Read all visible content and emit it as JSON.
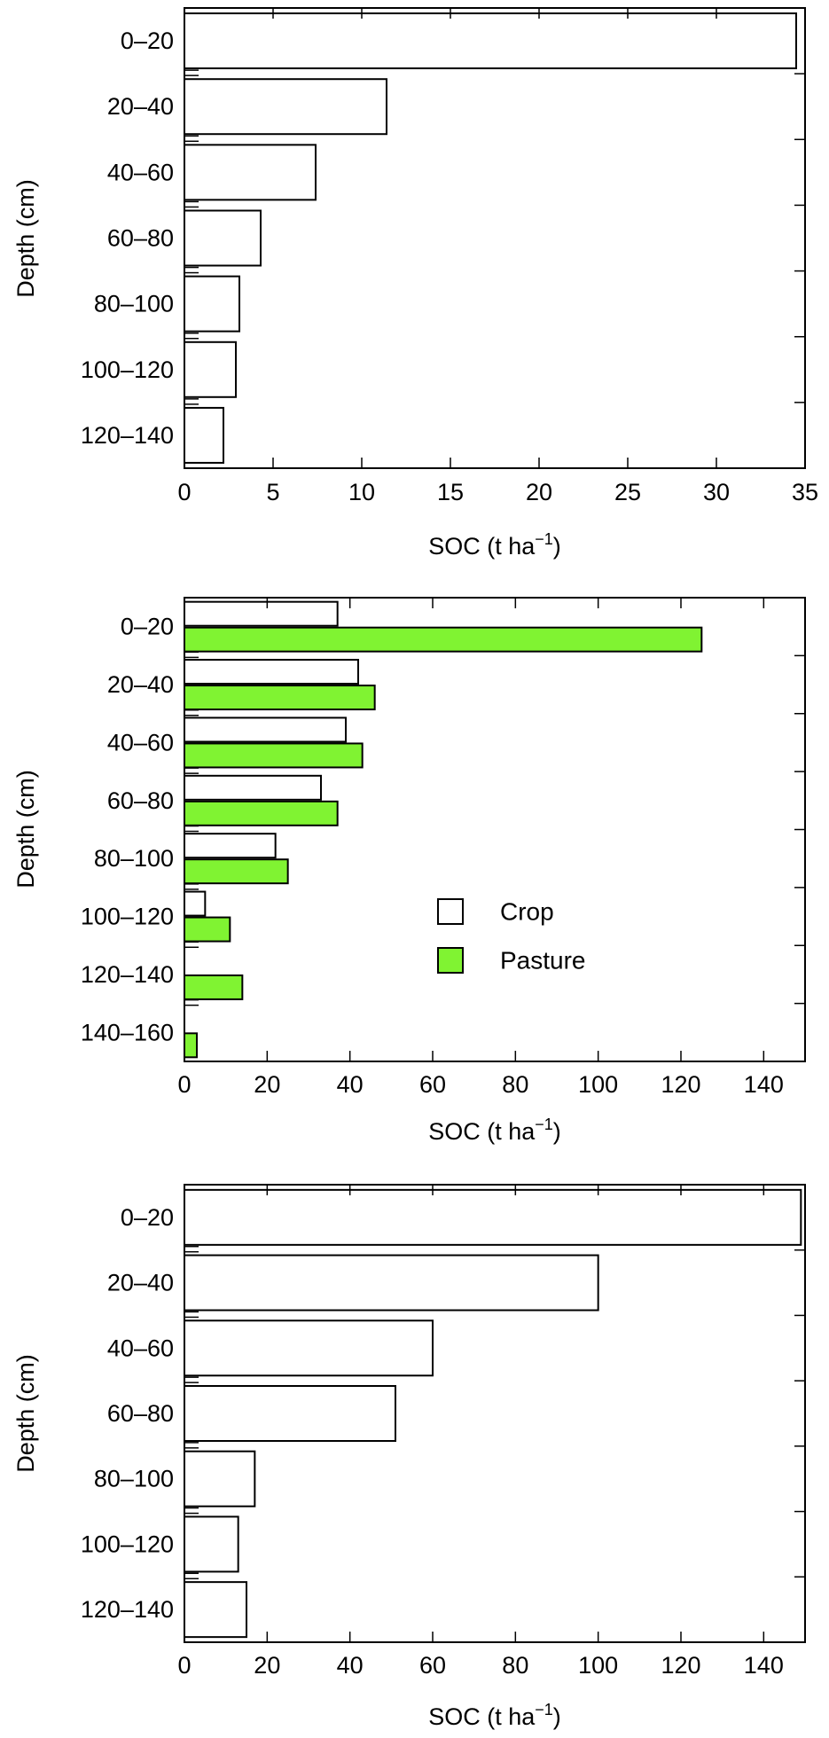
{
  "colors": {
    "crop_fill": "#ffffff",
    "pasture_fill": "#80f332",
    "pasture_legend_text": "#80f332",
    "axis": "#000000"
  },
  "chart_data": [
    {
      "type": "bar",
      "orientation": "horizontal",
      "categories": [
        "0–20",
        "20–40",
        "40–60",
        "60–80",
        "80–100",
        "100–120",
        "120–140"
      ],
      "series": [
        {
          "values": [
            34.5,
            11.4,
            7.4,
            4.3,
            3.1,
            2.9,
            2.2
          ]
        }
      ],
      "xlabel": "SOC (t ha",
      "xlabel_sup": "−1",
      "xlabel_end": ")",
      "ylabel": "Depth (cm)",
      "xlim": [
        0,
        35
      ],
      "xticks": [
        0,
        5,
        10,
        15,
        20,
        25,
        30,
        35
      ],
      "grid": false
    },
    {
      "type": "bar",
      "orientation": "horizontal",
      "categories": [
        "0–20",
        "20–40",
        "40–60",
        "60–80",
        "80–100",
        "100–120",
        "120–140",
        "140–160"
      ],
      "series": [
        {
          "name": "Crop",
          "values": [
            37,
            42,
            39,
            33,
            22,
            5,
            0,
            0
          ]
        },
        {
          "name": "Pasture",
          "values": [
            125,
            46,
            43,
            37,
            25,
            11,
            14,
            3
          ]
        }
      ],
      "xlabel": "SOC (t ha",
      "xlabel_sup": "−1",
      "xlabel_end": ")",
      "ylabel": "Depth (cm)",
      "xlim": [
        0,
        150
      ],
      "xticks": [
        0,
        20,
        40,
        60,
        80,
        100,
        120,
        140
      ],
      "legend_position": "center-right",
      "grid": false
    },
    {
      "type": "bar",
      "orientation": "horizontal",
      "categories": [
        "0–20",
        "20–40",
        "40–60",
        "60–80",
        "80–100",
        "100–120",
        "120–140"
      ],
      "series": [
        {
          "values": [
            149,
            100,
            60,
            51,
            17,
            13,
            15
          ]
        }
      ],
      "xlabel": "SOC (t ha",
      "xlabel_sup": "−1",
      "xlabel_end": ")",
      "ylabel": "Depth (cm)",
      "xlim": [
        0,
        150
      ],
      "xticks": [
        0,
        20,
        40,
        60,
        80,
        100,
        120,
        140
      ],
      "grid": false
    }
  ]
}
